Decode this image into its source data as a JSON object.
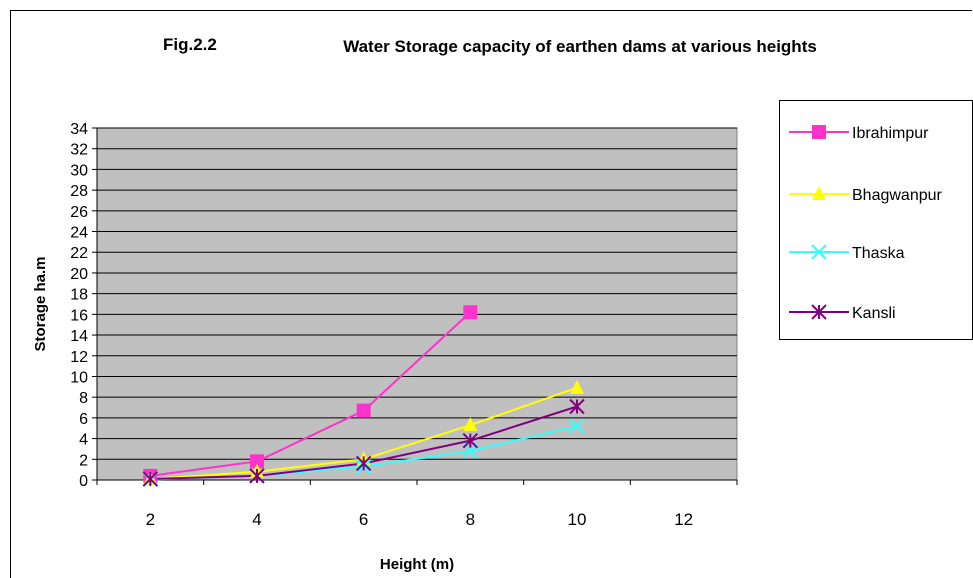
{
  "chart_data": {
    "type": "line",
    "title_prefix": "Fig.2.2",
    "title": "Water Storage capacity of earthen dams at various heights",
    "xlabel": "Height (m)",
    "ylabel": "Storage ha.m",
    "x": [
      2,
      4,
      6,
      8,
      10,
      12
    ],
    "xlim": [
      1,
      13
    ],
    "ylim": [
      0,
      34
    ],
    "yticks": [
      0,
      2,
      4,
      6,
      8,
      10,
      12,
      14,
      16,
      18,
      20,
      22,
      24,
      26,
      28,
      30,
      32,
      34
    ],
    "xticks": [
      2,
      4,
      6,
      8,
      10,
      12
    ],
    "grid": true,
    "legend_position": "right",
    "plot_background": "#c0c0c0",
    "series": [
      {
        "name": "Ibrahimpur",
        "color": "#ff33cc",
        "marker": "square",
        "points": [
          [
            2,
            0.4
          ],
          [
            4,
            1.8
          ],
          [
            6,
            6.7
          ],
          [
            8,
            16.2
          ]
        ]
      },
      {
        "name": "Bhagwanpur",
        "color": "#ffff00",
        "marker": "triangle",
        "points": [
          [
            2,
            0.1
          ],
          [
            4,
            0.8
          ],
          [
            6,
            2.0
          ],
          [
            8,
            5.3
          ],
          [
            10,
            8.9
          ]
        ]
      },
      {
        "name": "Thaska",
        "color": "#33ffff",
        "marker": "x",
        "points": [
          [
            2,
            0.05
          ],
          [
            4,
            0.4
          ],
          [
            6,
            1.3
          ],
          [
            8,
            2.8
          ],
          [
            10,
            5.2
          ]
        ]
      },
      {
        "name": "Kansli",
        "color": "#800080",
        "marker": "asterisk",
        "points": [
          [
            2,
            0.1
          ],
          [
            4,
            0.4
          ],
          [
            6,
            1.6
          ],
          [
            8,
            3.8
          ],
          [
            10,
            7.1
          ]
        ]
      }
    ]
  }
}
